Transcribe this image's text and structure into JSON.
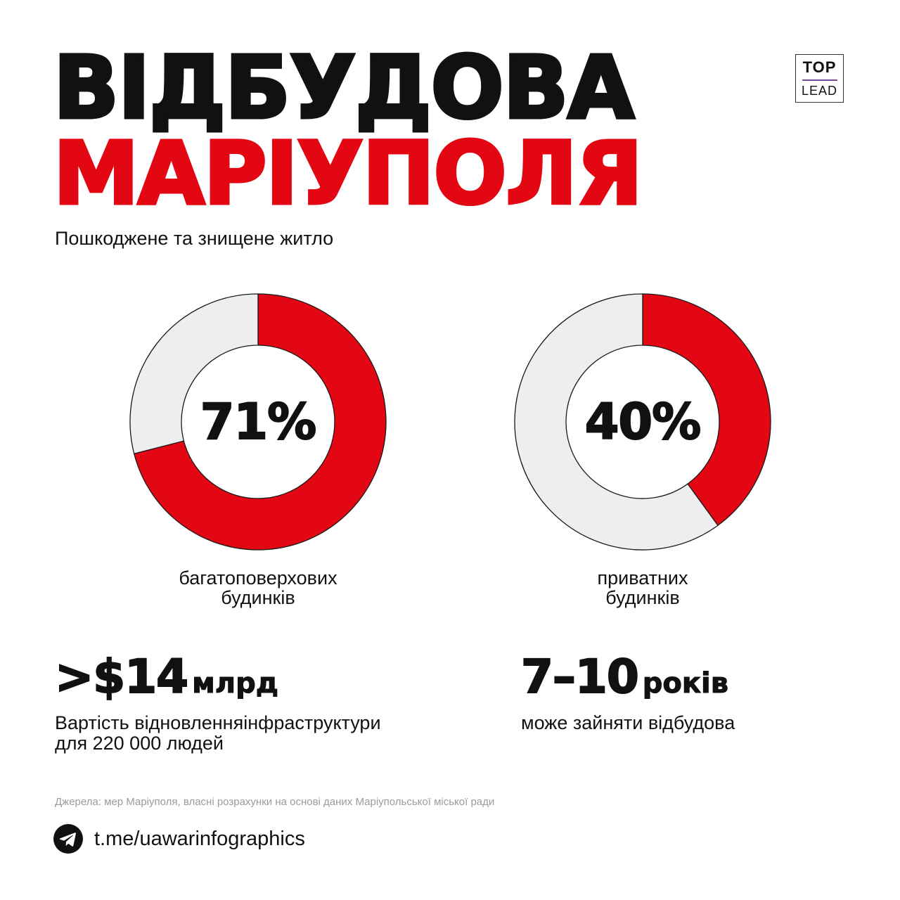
{
  "title": {
    "line1": "ВІДБУДОВА",
    "line2": "МАРІУПОЛЯ"
  },
  "logo": {
    "top": "TOP",
    "bottom": "LEAD"
  },
  "subtitle": "Пошкоджене та знищене житло",
  "colors": {
    "accent": "#e30613",
    "remainder": "#eeeeee",
    "text": "#111111"
  },
  "chart_data": [
    {
      "type": "pie",
      "title": "",
      "values": [
        71,
        29
      ],
      "value_label": "71%",
      "caption_lines": [
        "багатоповерхових",
        "будинків"
      ]
    },
    {
      "type": "pie",
      "title": "",
      "values": [
        40,
        60
      ],
      "value_label": "40%",
      "caption_lines": [
        "приватних",
        "будинків"
      ]
    }
  ],
  "stats": {
    "cost": {
      "value": ">$14",
      "unit": "млрд",
      "desc_line1": "Вартість відновленняінфраструктури",
      "desc_line2": "для 220 000 людей"
    },
    "years": {
      "value": "7–10",
      "unit": "років",
      "desc_line1": "може зайняти відбудова"
    }
  },
  "sources": "Джерела: мер Маріуполя, власні розрахунки на основі даних Маріупольської міської ради",
  "footer": {
    "icon": "telegram-icon",
    "link": "t.me/uawarinfographics"
  }
}
